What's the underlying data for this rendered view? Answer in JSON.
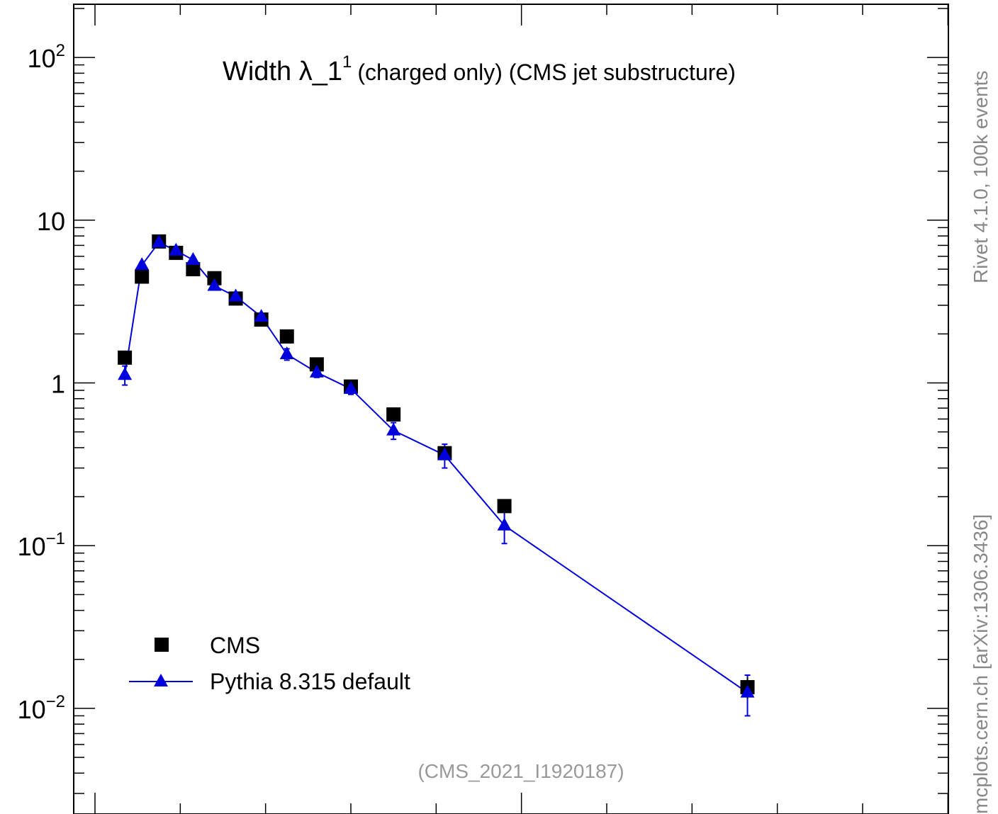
{
  "chart_data": {
    "type": "scatter",
    "title_main": "Width λ_1",
    "title_sup": "1",
    "title_rest": "(charged only) (CMS jet substructure)",
    "watermark": "(CMS_2021_I1920187)",
    "yscale": "log",
    "ylim": [
      0.003,
      200
    ],
    "xlim": [
      0,
      1.0
    ],
    "y_tick_labels": [
      {
        "value": 100,
        "base": "10",
        "exp": "2"
      },
      {
        "value": 10,
        "base": "10",
        "exp": ""
      },
      {
        "value": 1,
        "base": "1",
        "exp": ""
      },
      {
        "value": 0.1,
        "base": "10",
        "exp": "−1"
      },
      {
        "value": 0.01,
        "base": "10",
        "exp": "−2"
      }
    ],
    "legend_position": "bottom-left",
    "series": [
      {
        "name": "CMS",
        "marker": "square",
        "color": "#000000",
        "x": [
          0.035,
          0.055,
          0.075,
          0.095,
          0.115,
          0.14,
          0.165,
          0.195,
          0.225,
          0.26,
          0.3,
          0.35,
          0.41,
          0.48,
          0.765
        ],
        "y": [
          1.43,
          4.5,
          7.4,
          6.3,
          5.0,
          4.4,
          3.3,
          2.45,
          1.93,
          1.3,
          0.95,
          0.64,
          0.37,
          0.175,
          0.0135
        ],
        "err": [
          0.05,
          0.1,
          0.1,
          0.1,
          0.1,
          0.1,
          0.08,
          0.06,
          0.05,
          0.04,
          0.04,
          0.03,
          0.02,
          0.01,
          0.002
        ]
      },
      {
        "name": "Pythia 8.315 default",
        "marker": "triangle",
        "color": "#0000dd",
        "x": [
          0.035,
          0.055,
          0.075,
          0.095,
          0.115,
          0.14,
          0.165,
          0.195,
          0.225,
          0.26,
          0.3,
          0.35,
          0.41,
          0.48,
          0.765
        ],
        "y": [
          1.12,
          5.3,
          7.3,
          6.5,
          5.7,
          3.95,
          3.4,
          2.55,
          1.5,
          1.16,
          0.92,
          0.51,
          0.36,
          0.133,
          0.0125
        ],
        "err": [
          0.15,
          0.2,
          0.2,
          0.2,
          0.2,
          0.15,
          0.12,
          0.1,
          0.12,
          0.08,
          0.07,
          0.06,
          0.06,
          0.03,
          0.0035
        ]
      }
    ]
  },
  "side_labels": {
    "top": "Rivet 4.1.0,  100k events",
    "bottom": "mcplots.cern.ch [arXiv:1306.3436]"
  }
}
